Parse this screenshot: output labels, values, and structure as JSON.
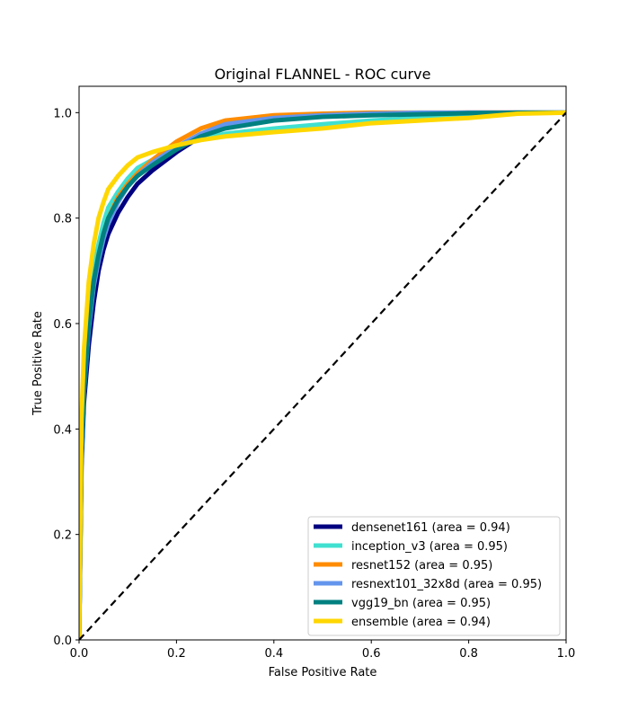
{
  "chart_data": {
    "type": "line",
    "title": "Original FLANNEL - ROC curve",
    "xlabel": "False Positive Rate",
    "ylabel": "True Positive Rate",
    "xlim": [
      0.0,
      1.0
    ],
    "ylim": [
      0.0,
      1.05
    ],
    "xticks": [
      "0.0",
      "0.2",
      "0.4",
      "0.6",
      "0.8",
      "1.0"
    ],
    "yticks": [
      "0.0",
      "0.2",
      "0.4",
      "0.6",
      "0.8",
      "1.0"
    ],
    "grid": false,
    "legend_position": "lower-right",
    "series": [
      {
        "name": "densenet161 (area = 0.94)",
        "color": "#000080",
        "x": [
          0,
          0.005,
          0.01,
          0.02,
          0.03,
          0.04,
          0.05,
          0.06,
          0.08,
          0.1,
          0.12,
          0.15,
          0.2,
          0.25,
          0.3,
          0.4,
          0.5,
          0.6,
          0.7,
          0.8,
          0.9,
          1.0
        ],
        "y": [
          0,
          0.33,
          0.45,
          0.56,
          0.64,
          0.7,
          0.74,
          0.77,
          0.81,
          0.84,
          0.865,
          0.89,
          0.925,
          0.955,
          0.975,
          0.99,
          0.995,
          0.998,
          0.999,
          1.0,
          1.0,
          1.0
        ]
      },
      {
        "name": "inception_v3 (area = 0.95)",
        "color": "#40E0D0",
        "x": [
          0,
          0.005,
          0.01,
          0.02,
          0.03,
          0.04,
          0.05,
          0.06,
          0.08,
          0.1,
          0.12,
          0.15,
          0.2,
          0.25,
          0.3,
          0.4,
          0.5,
          0.6,
          0.7,
          0.8,
          0.9,
          1.0
        ],
        "y": [
          0,
          0.38,
          0.5,
          0.62,
          0.7,
          0.75,
          0.79,
          0.82,
          0.85,
          0.875,
          0.895,
          0.91,
          0.935,
          0.95,
          0.96,
          0.97,
          0.978,
          0.985,
          0.99,
          0.995,
          1.0,
          1.0
        ]
      },
      {
        "name": "resnet152 (area = 0.95)",
        "color": "#FF8C00",
        "x": [
          0,
          0.005,
          0.01,
          0.02,
          0.03,
          0.04,
          0.05,
          0.06,
          0.08,
          0.1,
          0.12,
          0.15,
          0.2,
          0.25,
          0.3,
          0.4,
          0.5,
          0.6,
          0.7,
          0.8,
          0.9,
          1.0
        ],
        "y": [
          0,
          0.36,
          0.48,
          0.6,
          0.68,
          0.73,
          0.77,
          0.8,
          0.84,
          0.865,
          0.885,
          0.91,
          0.945,
          0.97,
          0.985,
          0.995,
          0.998,
          1.0,
          1.0,
          1.0,
          1.0,
          1.0
        ]
      },
      {
        "name": "resnext101_32x8d (area = 0.95)",
        "color": "#6495ED",
        "x": [
          0,
          0.005,
          0.01,
          0.02,
          0.03,
          0.04,
          0.05,
          0.06,
          0.08,
          0.1,
          0.12,
          0.15,
          0.2,
          0.25,
          0.3,
          0.4,
          0.5,
          0.6,
          0.7,
          0.8,
          0.9,
          1.0
        ],
        "y": [
          0,
          0.35,
          0.47,
          0.59,
          0.67,
          0.72,
          0.76,
          0.79,
          0.83,
          0.86,
          0.88,
          0.905,
          0.935,
          0.96,
          0.978,
          0.99,
          0.995,
          0.998,
          1.0,
          1.0,
          1.0,
          1.0
        ]
      },
      {
        "name": "vgg19_bn (area = 0.95)",
        "color": "#008080",
        "x": [
          0,
          0.005,
          0.01,
          0.02,
          0.03,
          0.04,
          0.05,
          0.06,
          0.08,
          0.1,
          0.12,
          0.15,
          0.2,
          0.25,
          0.3,
          0.4,
          0.5,
          0.6,
          0.7,
          0.8,
          0.9,
          1.0
        ],
        "y": [
          0,
          0.35,
          0.47,
          0.6,
          0.68,
          0.73,
          0.77,
          0.8,
          0.835,
          0.86,
          0.88,
          0.9,
          0.93,
          0.955,
          0.97,
          0.985,
          0.992,
          0.995,
          0.997,
          0.999,
          1.0,
          1.0
        ]
      },
      {
        "name": "ensemble (area = 0.94)",
        "color": "#FFD700",
        "x": [
          0,
          0.005,
          0.01,
          0.02,
          0.03,
          0.04,
          0.05,
          0.06,
          0.08,
          0.1,
          0.12,
          0.15,
          0.2,
          0.25,
          0.3,
          0.4,
          0.5,
          0.55,
          0.6,
          0.7,
          0.8,
          0.9,
          1.0
        ],
        "y": [
          0,
          0.42,
          0.55,
          0.68,
          0.75,
          0.8,
          0.83,
          0.855,
          0.88,
          0.9,
          0.915,
          0.925,
          0.938,
          0.948,
          0.955,
          0.963,
          0.97,
          0.975,
          0.98,
          0.985,
          0.99,
          0.998,
          1.0
        ]
      }
    ],
    "reference_line": {
      "x": [
        0,
        1
      ],
      "y": [
        0,
        1
      ],
      "color": "#000000",
      "style": "dashed"
    }
  }
}
